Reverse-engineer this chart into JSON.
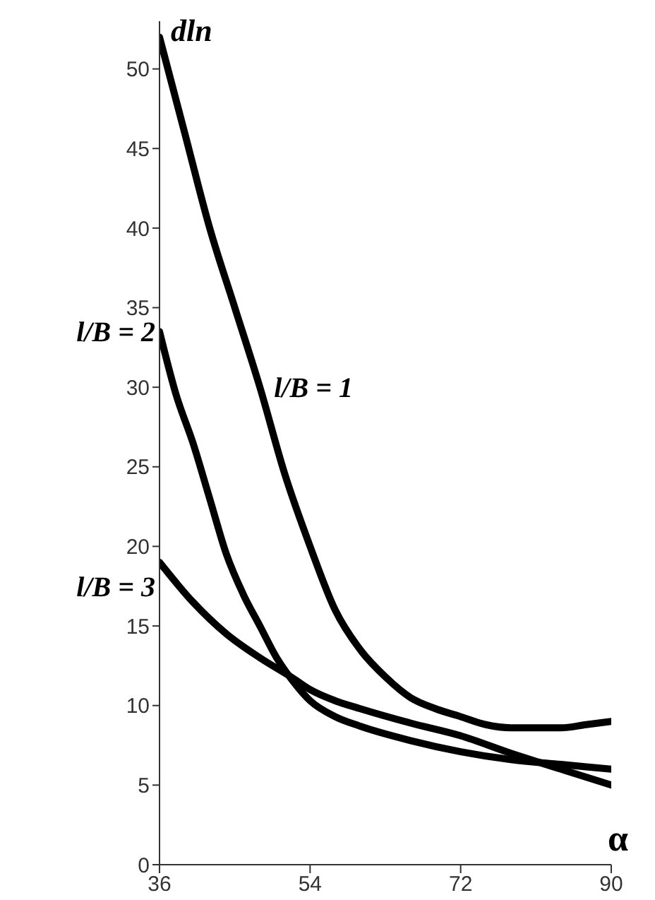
{
  "chart_data": {
    "type": "line",
    "xlabel": "α",
    "ylabel": "dln",
    "xlim": [
      36,
      90
    ],
    "xticks": [
      36,
      54,
      72,
      90
    ],
    "ylim": [
      0,
      53
    ],
    "yticks": [
      0,
      5,
      10,
      15,
      20,
      25,
      30,
      35,
      40,
      45,
      50
    ],
    "marker": "none",
    "line_style": "solid",
    "grid": false,
    "legend": false,
    "series": [
      {
        "name": "l/B = 1",
        "color": "#000000",
        "x": [
          36,
          39,
          42,
          45,
          48,
          51,
          54,
          57,
          60,
          63,
          66,
          69,
          72,
          75,
          78,
          81,
          84,
          87,
          90
        ],
        "values": [
          52,
          46,
          40,
          35,
          30,
          24.5,
          20,
          16,
          13.5,
          11.8,
          10.5,
          9.8,
          9.3,
          8.8,
          8.6,
          8.6,
          8.6,
          8.8,
          9
        ]
      },
      {
        "name": "l/B = 2",
        "color": "#000000",
        "x": [
          36,
          38,
          40,
          42,
          44,
          46,
          48,
          50,
          52,
          54,
          57,
          60,
          66,
          72,
          78,
          84,
          90
        ],
        "values": [
          33.5,
          29.5,
          26.5,
          23,
          19.5,
          17,
          15,
          13,
          11.5,
          10.3,
          9.3,
          8.7,
          7.8,
          7.1,
          6.6,
          6.3,
          6
        ]
      },
      {
        "name": "l/B = 3",
        "color": "#000000",
        "x": [
          36,
          40,
          44,
          48,
          52,
          54,
          57,
          60,
          66,
          72,
          78,
          84,
          90
        ],
        "values": [
          19,
          16.5,
          14.5,
          13,
          11.7,
          11,
          10.3,
          9.8,
          8.9,
          8.1,
          7,
          6,
          5
        ]
      }
    ]
  }
}
